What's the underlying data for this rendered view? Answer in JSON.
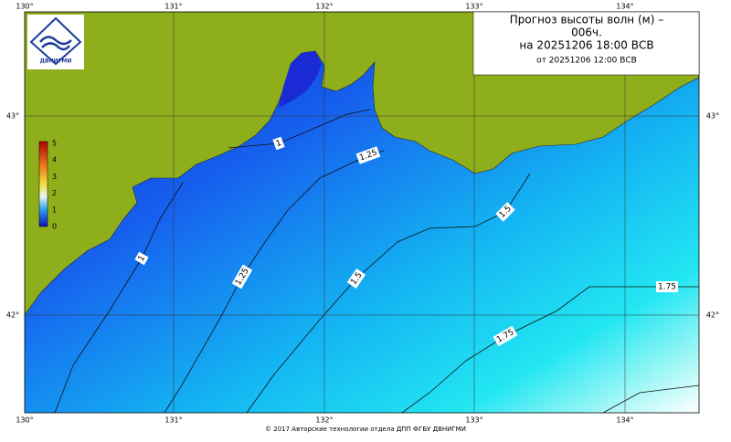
{
  "header": {
    "title_lines": [
      "Прогноз высоты волн (м) –",
      "006ч.",
      "на 20251206 18:00 ВСВ"
    ],
    "issued": "от 20251206 12:00 ВСВ"
  },
  "logo": {
    "text": "ДВНИГМИ"
  },
  "map": {
    "lon_labels": [
      "130°",
      "131°",
      "132°",
      "133°",
      "134°"
    ],
    "lat_labels": [
      "43°",
      "42°"
    ],
    "colorbar_labels": [
      "5",
      "4",
      "3",
      "2",
      "1",
      "0"
    ],
    "contour_labels": [
      "1",
      "1",
      "1.25",
      "1.25",
      "1.5",
      "1.5",
      "1.75",
      "1.75"
    ]
  },
  "footer": {
    "text": "© 2017 Авторские технологии отдела ДПП ФГБУ ДВНИГМИ"
  }
}
